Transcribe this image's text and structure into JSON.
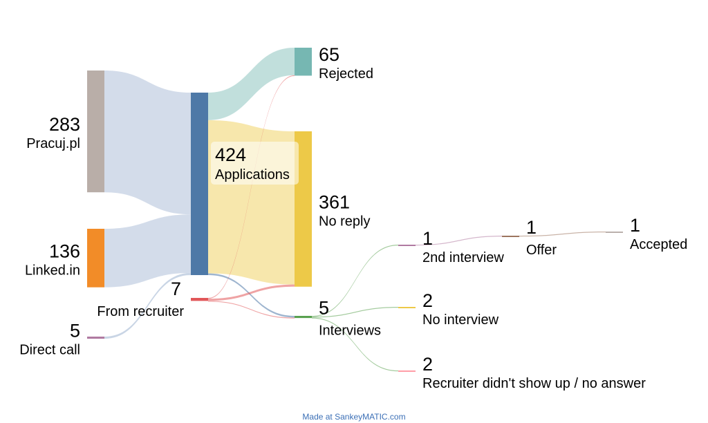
{
  "chart_data": {
    "type": "sankey",
    "nodes": [
      {
        "id": "pracuj",
        "name": "Pracuj.pl",
        "value": 283,
        "color": "#b9aea8"
      },
      {
        "id": "linkedin",
        "name": "Linked.in",
        "value": 136,
        "color": "#f28c28"
      },
      {
        "id": "direct",
        "name": "Direct call",
        "value": 5,
        "color": "#b07aa1"
      },
      {
        "id": "applications",
        "name": "Applications",
        "value": 424,
        "color": "#4e79a7"
      },
      {
        "id": "recruiter",
        "name": "From recruiter",
        "value": 7,
        "color": "#e15759"
      },
      {
        "id": "rejected",
        "name": "Rejected",
        "value": 65,
        "color": "#76b7b2"
      },
      {
        "id": "noreply",
        "name": "No reply",
        "value": 361,
        "color": "#edc948"
      },
      {
        "id": "interviews",
        "name": "Interviews",
        "value": 5,
        "color": "#59a14f"
      },
      {
        "id": "second",
        "name": "2nd interview",
        "value": 1,
        "color": "#b07aa1"
      },
      {
        "id": "nointerview",
        "name": "No interview",
        "value": 2,
        "color": "#edc948"
      },
      {
        "id": "noshow",
        "name": "Recruiter didn't show up / no answer",
        "value": 2,
        "color": "#ff9da7"
      },
      {
        "id": "offer",
        "name": "Offer",
        "value": 1,
        "color": "#9c755f"
      },
      {
        "id": "accepted",
        "name": "Accepted",
        "value": 1,
        "color": "#bab0ac"
      }
    ],
    "flows": [
      {
        "from": "pracuj",
        "to": "applications",
        "value": 283
      },
      {
        "from": "linkedin",
        "to": "applications",
        "value": 136
      },
      {
        "from": "direct",
        "to": "applications",
        "value": 5
      },
      {
        "from": "applications",
        "to": "rejected",
        "value": 64
      },
      {
        "from": "applications",
        "to": "noreply",
        "value": 356
      },
      {
        "from": "applications",
        "to": "interviews",
        "value": 4
      },
      {
        "from": "recruiter",
        "to": "rejected",
        "value": 1
      },
      {
        "from": "recruiter",
        "to": "noreply",
        "value": 5
      },
      {
        "from": "recruiter",
        "to": "interviews",
        "value": 1
      },
      {
        "from": "interviews",
        "to": "second",
        "value": 1
      },
      {
        "from": "interviews",
        "to": "nointerview",
        "value": 2
      },
      {
        "from": "interviews",
        "to": "noshow",
        "value": 2
      },
      {
        "from": "second",
        "to": "offer",
        "value": 1
      },
      {
        "from": "offer",
        "to": "accepted",
        "value": 1
      }
    ]
  },
  "footer": {
    "credit": "Made at SankeyMATIC.com"
  }
}
